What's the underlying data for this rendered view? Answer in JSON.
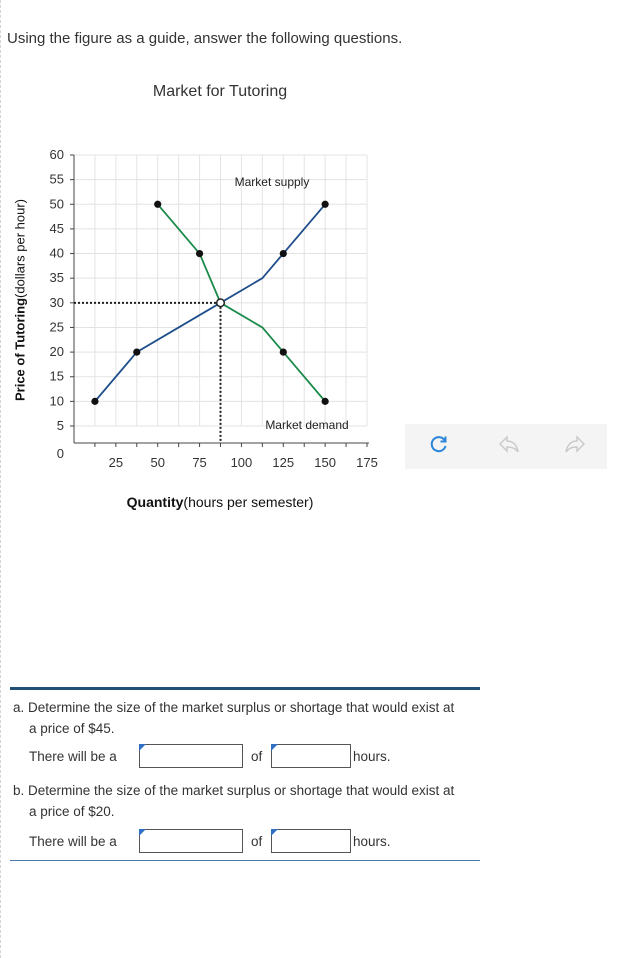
{
  "instruction": "Using the figure as a guide, answer the following questions.",
  "chart_data": {
    "type": "line",
    "title": "Market for Tutoring",
    "ylabel_bold": "Price of Tutoring",
    "ylabel_rest": "(dollars per hour)",
    "xlabel_bold": "Quantity",
    "xlabel_rest": "(hours per semester)",
    "xlim": [
      0,
      175
    ],
    "ylim": [
      0,
      60
    ],
    "x_ticks": [
      25,
      50,
      75,
      100,
      125,
      150,
      175
    ],
    "y_ticks": [
      0,
      5,
      10,
      15,
      20,
      25,
      30,
      35,
      40,
      45,
      50,
      55,
      60
    ],
    "grid": true,
    "series": [
      {
        "name": "Market supply",
        "color": "#1f4e8c",
        "points": [
          [
            12.5,
            10
          ],
          [
            37.5,
            20
          ],
          [
            87.5,
            30
          ],
          [
            112.5,
            35
          ],
          [
            125,
            40
          ],
          [
            150,
            50
          ]
        ],
        "markers": [
          [
            12.5,
            10
          ],
          [
            37.5,
            20
          ],
          [
            125,
            40
          ],
          [
            150,
            50
          ]
        ]
      },
      {
        "name": "Market demand",
        "color": "#1b8a4a",
        "points": [
          [
            50,
            50
          ],
          [
            75,
            40
          ],
          [
            87.5,
            30
          ],
          [
            112.5,
            25
          ],
          [
            125,
            20
          ],
          [
            150,
            10
          ]
        ],
        "markers": [
          [
            50,
            50
          ],
          [
            75,
            40
          ],
          [
            125,
            20
          ],
          [
            150,
            10
          ]
        ]
      }
    ],
    "equilibrium": [
      87.5,
      30
    ]
  },
  "tools": [
    "refresh-icon",
    "undo-icon",
    "redo-icon"
  ],
  "questions": [
    {
      "prompt_line1": "a. Determine the size of the market surplus or shortage that would exist at",
      "prompt_line2": "a price of $45.",
      "lead": "There will be a",
      "mid": "of",
      "tail": "hours.",
      "input1": "",
      "input2": ""
    },
    {
      "prompt_line1": "b. Determine the size of the market surplus or shortage that would exist at",
      "prompt_line2": "a price of $20.",
      "lead": "There will be a",
      "mid": "of",
      "tail": "hours.",
      "input1": "",
      "input2": ""
    }
  ]
}
